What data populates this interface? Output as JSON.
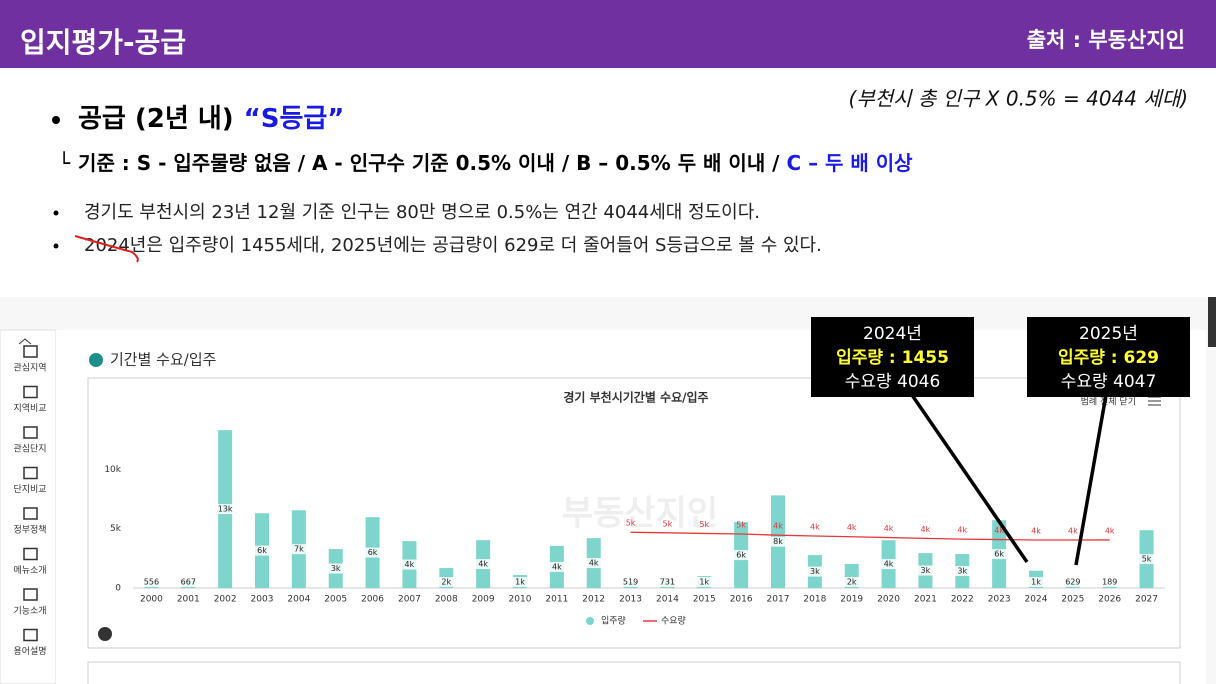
{
  "header": {
    "title": "입지평가-공급",
    "source": "출처 : 부동산지인"
  },
  "formula": "(부천시 총 인구 X 0.5% = 4044 세대)",
  "heading": {
    "text": "공급 (2년 내)",
    "grade": "“S등급”"
  },
  "criteria": {
    "marker": "└",
    "text": "기준 : S - 입주물량 없음 / A - 인구수 기준 0.5% 이내 / B – 0.5% 두 배 이내 / ",
    "highlight": "C – 두 배 이상"
  },
  "bullets": [
    "경기도 부천시의 23년 12월 기준 인구는 80만 명으로 0.5%는 연간 4044세대 정도이다.",
    "2024년은 입주량이 1455세대, 2025년에는 공급량이 629로 더 줄어들어 S등급으로 볼 수 있다."
  ],
  "sidebar": [
    "관심지역",
    "지역비교",
    "관심단지",
    "단지비교",
    "정부정책",
    "메뉴소개",
    "기능소개",
    "용어설명"
  ],
  "panel_title": "기간별 수요/입주",
  "watermark": "부동산지인",
  "legend_button": "범례 전체 닫기",
  "chart_data": {
    "type": "bar",
    "title": "경기 부천시기간별 수요/입주",
    "grid": false,
    "categories": [
      "2000",
      "2001",
      "2002",
      "2003",
      "2004",
      "2005",
      "2006",
      "2007",
      "2008",
      "2009",
      "2010",
      "2011",
      "2012",
      "2013",
      "2014",
      "2015",
      "2016",
      "2017",
      "2018",
      "2019",
      "2020",
      "2021",
      "2022",
      "2023",
      "2024",
      "2025",
      "2026",
      "2027"
    ],
    "ylim": [
      0,
      15000
    ],
    "yticks": [
      0,
      {
        "value": 5000,
        "label": "5k"
      },
      {
        "value": 10000,
        "label": "10k"
      }
    ],
    "series": [
      {
        "name": "입주량",
        "type": "bar",
        "color": "#7dd5cb",
        "values": [
          556,
          667,
          13300,
          6300,
          6550,
          3280,
          5970,
          3950,
          1680,
          4030,
          1090,
          3550,
          4200,
          519,
          731,
          1000,
          5550,
          7800,
          2770,
          2020,
          4030,
          2940,
          2860,
          5710,
          1455,
          629,
          189,
          4870
        ],
        "value_labels": [
          "556",
          "667",
          "13k",
          "6k",
          "7k",
          "3k",
          "6k",
          "4k",
          "2k",
          "4k",
          "1k",
          "4k",
          "4k",
          "519",
          "731",
          "1k",
          "6k",
          "8k",
          "3k",
          "2k",
          "4k",
          "3k",
          "3k",
          "6k",
          "1k",
          "629",
          "189",
          "5k"
        ]
      },
      {
        "name": "수요량",
        "type": "line",
        "color": "#e8383d",
        "values": [
          null,
          null,
          null,
          null,
          null,
          null,
          null,
          null,
          null,
          null,
          null,
          null,
          null,
          4700,
          4650,
          4600,
          4550,
          4450,
          4380,
          4320,
          4250,
          4180,
          4120,
          4080,
          4046,
          4047,
          4050,
          null
        ],
        "value_labels": [
          null,
          null,
          null,
          null,
          null,
          null,
          null,
          null,
          null,
          null,
          null,
          null,
          null,
          "5k",
          "5k",
          "5k",
          "5k",
          "4k",
          "4k",
          "4k",
          "4k",
          "4k",
          "4k",
          "4k",
          "4k",
          "4k",
          "4k",
          null
        ]
      }
    ],
    "annotations": [
      {
        "year": "2024년",
        "supply": "입주량 : 1455",
        "demand": "수요량 4046"
      },
      {
        "year": "2025년",
        "supply": "입주량 : 629",
        "demand": "수요량 4047"
      }
    ]
  }
}
